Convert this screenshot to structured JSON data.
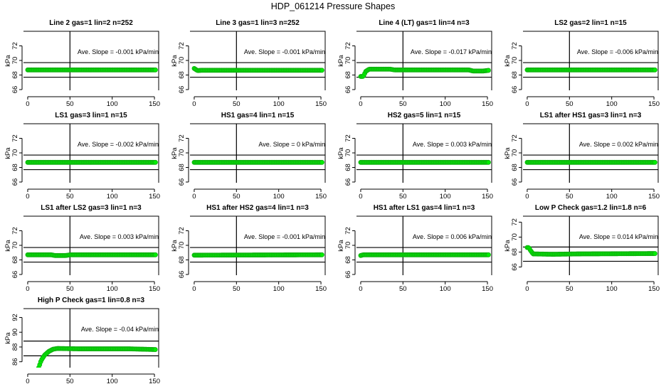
{
  "title": "HDP_061214  Pressure Shapes",
  "colors": {
    "marker_fill": "#00ee00",
    "marker_stroke": "#10b010",
    "lines": "#000000"
  },
  "chart_data": [
    {
      "type": "scatter",
      "title": "Line 2 gas=1 lin=2 n=252",
      "ylabel": "kPa",
      "annotation": "Ave. Slope =  -0.001  kPa/min",
      "xlim": [
        -5,
        155
      ],
      "ylim": [
        65.9,
        74
      ],
      "xticks": [
        0,
        50,
        100,
        150
      ],
      "yticks": [
        66,
        68,
        70,
        72
      ],
      "hlines": [
        69.7,
        67.7
      ],
      "vline": 50,
      "points": [
        [
          0,
          68.7
        ],
        [
          152,
          68.7
        ]
      ]
    },
    {
      "type": "scatter",
      "title": "Line 3 gas=1 lin=3 n=252",
      "ylabel": "kPa",
      "annotation": "Ave. Slope =  -0.001  kPa/min",
      "xlim": [
        -5,
        155
      ],
      "ylim": [
        65.9,
        74
      ],
      "xticks": [
        0,
        50,
        100,
        150
      ],
      "yticks": [
        66,
        68,
        70,
        72
      ],
      "hlines": [
        69.7,
        67.7
      ],
      "vline": 50,
      "points": [
        [
          0,
          68.9
        ],
        [
          4,
          68.6
        ],
        [
          8,
          68.65
        ],
        [
          152,
          68.65
        ]
      ]
    },
    {
      "type": "scatter",
      "title": "Line 4 (LT) gas=1 lin=4 n=3",
      "ylabel": "kPa",
      "annotation": "Ave. Slope =  -0.017  kPa/min",
      "xlim": [
        -5,
        155
      ],
      "ylim": [
        65.9,
        74
      ],
      "xticks": [
        0,
        50,
        100,
        150
      ],
      "yticks": [
        66,
        68,
        70,
        72
      ],
      "hlines": [
        69.7,
        67.7
      ],
      "vline": 50,
      "points": [
        [
          0,
          67.8
        ],
        [
          3,
          67.8
        ],
        [
          6,
          68.5
        ],
        [
          10,
          68.8
        ],
        [
          35,
          68.8
        ],
        [
          40,
          68.7
        ],
        [
          128,
          68.7
        ],
        [
          133,
          68.55
        ],
        [
          145,
          68.55
        ],
        [
          152,
          68.65
        ]
      ]
    },
    {
      "type": "scatter",
      "title": "LS2 gas=2 lin=1 n=15",
      "ylabel": "kPa",
      "annotation": "Ave. Slope =  -0.006  kPa/min",
      "xlim": [
        -5,
        155
      ],
      "ylim": [
        65.9,
        74
      ],
      "xticks": [
        0,
        50,
        100,
        150
      ],
      "yticks": [
        66,
        68,
        70,
        72
      ],
      "hlines": [
        69.7,
        67.7
      ],
      "vline": 50,
      "points": [
        [
          0,
          68.7
        ],
        [
          152,
          68.7
        ]
      ]
    },
    {
      "type": "scatter",
      "title": "LS1 gas=3 lin=1 n=15",
      "ylabel": "kPa",
      "annotation": "Ave. Slope =  -0.002  kPa/min",
      "xlim": [
        -5,
        155
      ],
      "ylim": [
        65.9,
        74
      ],
      "xticks": [
        0,
        50,
        100,
        150
      ],
      "yticks": [
        66,
        68,
        70,
        72
      ],
      "hlines": [
        69.7,
        67.7
      ],
      "vline": 50,
      "points": [
        [
          0,
          68.7
        ],
        [
          152,
          68.7
        ]
      ]
    },
    {
      "type": "scatter",
      "title": "HS1 gas=4 lin=1 n=15",
      "ylabel": "kPa",
      "annotation": "Ave. Slope =  0  kPa/min",
      "xlim": [
        -5,
        155
      ],
      "ylim": [
        65.9,
        74
      ],
      "xticks": [
        0,
        50,
        100,
        150
      ],
      "yticks": [
        66,
        68,
        70,
        72
      ],
      "hlines": [
        69.7,
        67.7
      ],
      "vline": 50,
      "points": [
        [
          0,
          68.7
        ],
        [
          152,
          68.7
        ]
      ]
    },
    {
      "type": "scatter",
      "title": "HS2 gas=5 lin=1 n=15",
      "ylabel": "kPa",
      "annotation": "Ave. Slope =  0.003  kPa/min",
      "xlim": [
        -5,
        155
      ],
      "ylim": [
        65.9,
        74
      ],
      "xticks": [
        0,
        50,
        100,
        150
      ],
      "yticks": [
        66,
        68,
        70,
        72
      ],
      "hlines": [
        69.7,
        67.7
      ],
      "vline": 50,
      "points": [
        [
          0,
          68.7
        ],
        [
          152,
          68.7
        ]
      ]
    },
    {
      "type": "scatter",
      "title": "LS1 after HS1 gas=3 lin=1 n=3",
      "ylabel": "kPa",
      "annotation": "Ave. Slope =  0.002  kPa/min",
      "xlim": [
        -5,
        155
      ],
      "ylim": [
        65.9,
        74
      ],
      "xticks": [
        0,
        50,
        100,
        150
      ],
      "yticks": [
        66,
        68,
        70,
        72
      ],
      "hlines": [
        69.7,
        67.7
      ],
      "vline": 50,
      "points": [
        [
          0,
          68.7
        ],
        [
          152,
          68.7
        ]
      ]
    },
    {
      "type": "scatter",
      "title": "LS1 after LS2 gas=3 lin=1 n=3",
      "ylabel": "kPa",
      "annotation": "Ave. Slope =  0.003  kPa/min",
      "xlim": [
        -5,
        155
      ],
      "ylim": [
        65.9,
        74
      ],
      "xticks": [
        0,
        50,
        100,
        150
      ],
      "yticks": [
        66,
        68,
        70,
        72
      ],
      "hlines": [
        69.7,
        67.7
      ],
      "vline": 50,
      "points": [
        [
          0,
          68.7
        ],
        [
          28,
          68.7
        ],
        [
          32,
          68.6
        ],
        [
          45,
          68.6
        ],
        [
          50,
          68.7
        ],
        [
          152,
          68.7
        ]
      ]
    },
    {
      "type": "scatter",
      "title": "HS1 after HS2 gas=4 lin=1 n=3",
      "ylabel": "kPa",
      "annotation": "Ave. Slope =  -0.001  kPa/min",
      "xlim": [
        -5,
        155
      ],
      "ylim": [
        65.9,
        74
      ],
      "xticks": [
        0,
        50,
        100,
        150
      ],
      "yticks": [
        66,
        68,
        70,
        72
      ],
      "hlines": [
        69.7,
        67.7
      ],
      "vline": 50,
      "points": [
        [
          0,
          68.65
        ],
        [
          152,
          68.7
        ]
      ]
    },
    {
      "type": "scatter",
      "title": "HS1 after LS1 gas=4 lin=1 n=3",
      "ylabel": "kPa",
      "annotation": "Ave. Slope =  0.006  kPa/min",
      "xlim": [
        -5,
        155
      ],
      "ylim": [
        65.9,
        74
      ],
      "xticks": [
        0,
        50,
        100,
        150
      ],
      "yticks": [
        66,
        68,
        70,
        72
      ],
      "hlines": [
        69.7,
        67.7
      ],
      "vline": 50,
      "points": [
        [
          0,
          68.6
        ],
        [
          3,
          68.7
        ],
        [
          152,
          68.7
        ]
      ]
    },
    {
      "type": "scatter",
      "title": "Low P Check gas=1.2 lin=1.8 n=6",
      "ylabel": "kPa",
      "annotation": "Ave. Slope =  0.014  kPa/min",
      "xlim": [
        -5,
        155
      ],
      "ylim": [
        64.9,
        72.8
      ],
      "xticks": [
        0,
        50,
        100,
        150
      ],
      "yticks": [
        66,
        68,
        70,
        72
      ],
      "hlines": [
        68.67,
        66.76
      ],
      "vline": 50,
      "points": [
        [
          0,
          68.6
        ],
        [
          2,
          68.6
        ],
        [
          4,
          68.2
        ],
        [
          7,
          67.75
        ],
        [
          30,
          67.7
        ],
        [
          60,
          67.75
        ],
        [
          152,
          67.8
        ]
      ]
    },
    {
      "type": "scatter",
      "title": "High P Check gas=1 lin=0.8 n=3",
      "ylabel": "kPa",
      "annotation": "Ave. Slope =  -0.04  kPa/min",
      "xlim": [
        -5,
        155
      ],
      "ylim": [
        85.2,
        93.2
      ],
      "xticks": [
        0,
        50,
        100,
        150
      ],
      "yticks": [
        86,
        88,
        90,
        92
      ],
      "hlines": [
        88.8,
        86.8
      ],
      "vline": 50,
      "points": [
        [
          13,
          85.2
        ],
        [
          16,
          86.2
        ],
        [
          20,
          86.9
        ],
        [
          25,
          87.4
        ],
        [
          30,
          87.7
        ],
        [
          35,
          87.8
        ],
        [
          60,
          87.75
        ],
        [
          120,
          87.75
        ],
        [
          152,
          87.65
        ]
      ]
    }
  ]
}
